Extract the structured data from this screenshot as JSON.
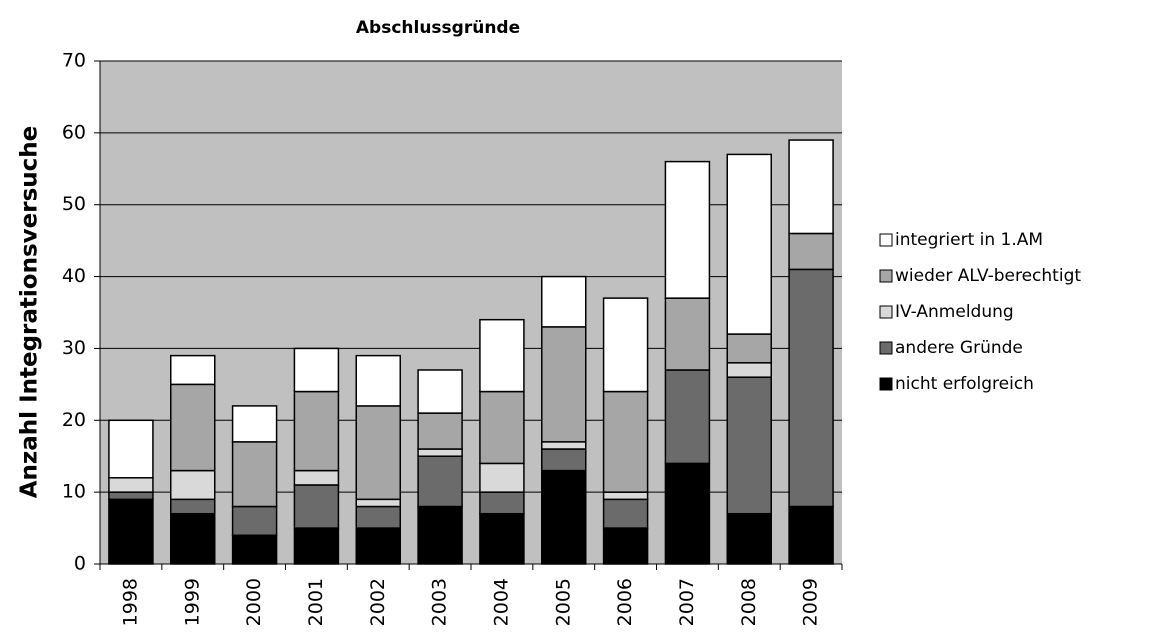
{
  "chart_data": {
    "type": "stacked_bar",
    "title": "Abschlussgründe",
    "y_label": "Anzahl Integrationsversuche",
    "categories": [
      "1998",
      "1999",
      "2000",
      "2001",
      "2002",
      "2003",
      "2004",
      "2005",
      "2006",
      "2007",
      "2008",
      "2009"
    ],
    "series": [
      {
        "name": "nicht erfolgreich",
        "color": "#000000",
        "values": [
          9,
          7,
          4,
          5,
          5,
          8,
          7,
          13,
          5,
          14,
          7,
          8
        ]
      },
      {
        "name": "andere Gründe",
        "color": "#6b6b6b",
        "values": [
          1,
          2,
          4,
          6,
          3,
          7,
          3,
          3,
          4,
          13,
          19,
          33
        ]
      },
      {
        "name": "IV-Anmeldung",
        "color": "#d9d9d9",
        "values": [
          2,
          4,
          0,
          2,
          1,
          1,
          4,
          1,
          1,
          0,
          2,
          0
        ]
      },
      {
        "name": "wieder ALV-berechtigt",
        "color": "#a6a6a6",
        "values": [
          0,
          12,
          9,
          11,
          13,
          5,
          10,
          16,
          14,
          10,
          4,
          5
        ]
      },
      {
        "name": "integriert in 1.AM",
        "color": "#ffffff",
        "values": [
          8,
          4,
          5,
          6,
          7,
          6,
          10,
          7,
          13,
          19,
          25,
          13
        ]
      }
    ],
    "ylim": [
      0,
      70
    ],
    "yticks": [
      0,
      10,
      20,
      30,
      40,
      50,
      60,
      70
    ],
    "grid": true,
    "plot_background": "#c0c0c0",
    "legend": "right"
  }
}
